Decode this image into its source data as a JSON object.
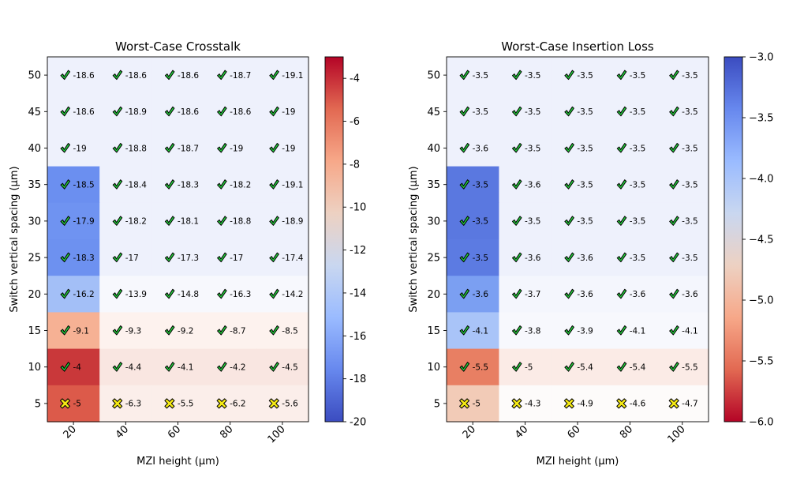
{
  "figure": {
    "background": "#ffffff"
  },
  "chart_data": [
    {
      "type": "heatmap",
      "title": "Worst-Case Crosstalk",
      "xlabel": "MZI height (µm)",
      "ylabel": "Switch vertical spacing (µm)",
      "x": [
        "20",
        "40",
        "60",
        "80",
        "100"
      ],
      "y": [
        "50",
        "45",
        "40",
        "35",
        "30",
        "25",
        "20",
        "15",
        "10",
        "5"
      ],
      "values": [
        [
          -18.6,
          -18.6,
          -18.6,
          -18.7,
          -19.1
        ],
        [
          -18.6,
          -18.9,
          -18.6,
          -18.6,
          -19.0
        ],
        [
          -19.0,
          -18.8,
          -18.7,
          -19.0,
          -19.0
        ],
        [
          -18.5,
          -18.4,
          -18.3,
          -18.2,
          -19.1
        ],
        [
          -17.9,
          -18.2,
          -18.1,
          -18.8,
          -18.9
        ],
        [
          -18.3,
          -17.0,
          -17.3,
          -17.0,
          -17.4
        ],
        [
          -16.2,
          -13.9,
          -14.8,
          -16.3,
          -14.2
        ],
        [
          -9.1,
          -9.3,
          -9.2,
          -8.7,
          -8.5
        ],
        [
          -4.0,
          -4.4,
          -4.1,
          -4.2,
          -4.5
        ],
        [
          -5.0,
          -6.3,
          -5.5,
          -6.2,
          -5.6
        ]
      ],
      "cell_colors": [
        [
          "#eef1fc",
          "#eef1fc",
          "#eef1fc",
          "#eef1fc",
          "#eef1fc"
        ],
        [
          "#eef1fc",
          "#eef1fc",
          "#eef1fc",
          "#eef1fc",
          "#eef1fc"
        ],
        [
          "#eef1fc",
          "#eef1fc",
          "#eef1fc",
          "#eef1fc",
          "#eef1fc"
        ],
        [
          "#6b8ff0",
          "#eef1fc",
          "#eef1fc",
          "#eef1fc",
          "#eef1fc"
        ],
        [
          "#6f93f1",
          "#eef1fc",
          "#eef1fc",
          "#eef1fc",
          "#eef1fc"
        ],
        [
          "#6d91f0",
          "#eef1fc",
          "#eef1fc",
          "#eef1fc",
          "#eef1fc"
        ],
        [
          "#a3bff7",
          "#f7f8fd",
          "#f7f8fd",
          "#f7f8fd",
          "#f7f8fd"
        ],
        [
          "#f6b194",
          "#fdf2ee",
          "#fdf2ee",
          "#fdf2ee",
          "#fdf2ee"
        ],
        [
          "#c9383a",
          "#f9e6e1",
          "#f9e6e1",
          "#f9e6e1",
          "#f9e6e1"
        ],
        [
          "#dc5a4a",
          "#fbeeea",
          "#fbeeea",
          "#fbeeea",
          "#fbeeea"
        ]
      ],
      "markers": [
        [
          "check",
          "check",
          "check",
          "check",
          "check"
        ],
        [
          "check",
          "check",
          "check",
          "check",
          "check"
        ],
        [
          "check",
          "check",
          "check",
          "check",
          "check"
        ],
        [
          "check",
          "check",
          "check",
          "check",
          "check"
        ],
        [
          "check",
          "check",
          "check",
          "check",
          "check"
        ],
        [
          "check",
          "check",
          "check",
          "check",
          "check"
        ],
        [
          "check",
          "check",
          "check",
          "check",
          "check"
        ],
        [
          "check",
          "check",
          "check",
          "check",
          "check"
        ],
        [
          "check",
          "check",
          "check",
          "check",
          "check"
        ],
        [
          "cross",
          "cross",
          "cross",
          "cross",
          "cross"
        ]
      ],
      "colorbar": {
        "range": [
          -20,
          -3
        ],
        "ticks": [
          "-4",
          "-6",
          "-8",
          "-10",
          "-12",
          "-14",
          "-16",
          "-18",
          "-20"
        ],
        "colormap": "coolwarm",
        "reversed": false
      }
    },
    {
      "type": "heatmap",
      "title": "Worst-Case Insertion Loss",
      "xlabel": "MZI height (µm)",
      "ylabel": "Switch vertical spacing (µm)",
      "x": [
        "20",
        "40",
        "60",
        "80",
        "100"
      ],
      "y": [
        "50",
        "45",
        "40",
        "35",
        "30",
        "25",
        "20",
        "15",
        "10",
        "5"
      ],
      "values": [
        [
          -3.5,
          -3.5,
          -3.5,
          -3.5,
          -3.5
        ],
        [
          -3.5,
          -3.5,
          -3.5,
          -3.5,
          -3.5
        ],
        [
          -3.6,
          -3.5,
          -3.5,
          -3.5,
          -3.5
        ],
        [
          -3.5,
          -3.6,
          -3.5,
          -3.5,
          -3.5
        ],
        [
          -3.5,
          -3.5,
          -3.5,
          -3.5,
          -3.5
        ],
        [
          -3.5,
          -3.6,
          -3.6,
          -3.5,
          -3.5
        ],
        [
          -3.6,
          -3.7,
          -3.6,
          -3.6,
          -3.6
        ],
        [
          -4.1,
          -3.8,
          -3.9,
          -4.1,
          -4.1
        ],
        [
          -5.5,
          -5.0,
          -5.4,
          -5.4,
          -5.5
        ],
        [
          -5.0,
          -4.3,
          -4.9,
          -4.6,
          -4.7
        ]
      ],
      "cell_colors": [
        [
          "#eef1fc",
          "#eef1fc",
          "#eef1fc",
          "#eef1fc",
          "#eef1fc"
        ],
        [
          "#eef1fc",
          "#eef1fc",
          "#eef1fc",
          "#eef1fc",
          "#eef1fc"
        ],
        [
          "#eef1fc",
          "#eef1fc",
          "#eef1fc",
          "#eef1fc",
          "#eef1fc"
        ],
        [
          "#5a78e0",
          "#eef1fc",
          "#eef1fc",
          "#eef1fc",
          "#eef1fc"
        ],
        [
          "#5a78e0",
          "#eef1fc",
          "#eef1fc",
          "#eef1fc",
          "#eef1fc"
        ],
        [
          "#5c7be2",
          "#eef1fc",
          "#eef1fc",
          "#eef1fc",
          "#eef1fc"
        ],
        [
          "#7b9ff2",
          "#f4f6fd",
          "#f4f6fd",
          "#f4f6fd",
          "#f4f6fd"
        ],
        [
          "#a9c4f8",
          "#f7f8fd",
          "#f7f8fd",
          "#f7f8fd",
          "#f7f8fd"
        ],
        [
          "#e87f63",
          "#fbebe6",
          "#fbebe6",
          "#fbebe6",
          "#fbebe6"
        ],
        [
          "#f2cbb7",
          "#fdfbfa",
          "#fdfbfa",
          "#fdfbfa",
          "#fdfbfa"
        ]
      ],
      "markers": [
        [
          "check",
          "check",
          "check",
          "check",
          "check"
        ],
        [
          "check",
          "check",
          "check",
          "check",
          "check"
        ],
        [
          "check",
          "check",
          "check",
          "check",
          "check"
        ],
        [
          "check",
          "check",
          "check",
          "check",
          "check"
        ],
        [
          "check",
          "check",
          "check",
          "check",
          "check"
        ],
        [
          "check",
          "check",
          "check",
          "check",
          "check"
        ],
        [
          "check",
          "check",
          "check",
          "check",
          "check"
        ],
        [
          "check",
          "check",
          "check",
          "check",
          "check"
        ],
        [
          "check",
          "check",
          "check",
          "check",
          "check"
        ],
        [
          "cross",
          "cross",
          "cross",
          "cross",
          "cross"
        ]
      ],
      "colorbar": {
        "range": [
          -6,
          -3
        ],
        "ticks": [
          "−3.0",
          "−3.5",
          "−4.0",
          "−4.5",
          "−5.0",
          "−5.5",
          "−6.0"
        ],
        "colormap": "coolwarm",
        "reversed": true
      }
    }
  ],
  "style": {
    "check_fill": "#22c93a",
    "cross_fill": "#f5ea14",
    "marker_stroke": "#000000"
  }
}
